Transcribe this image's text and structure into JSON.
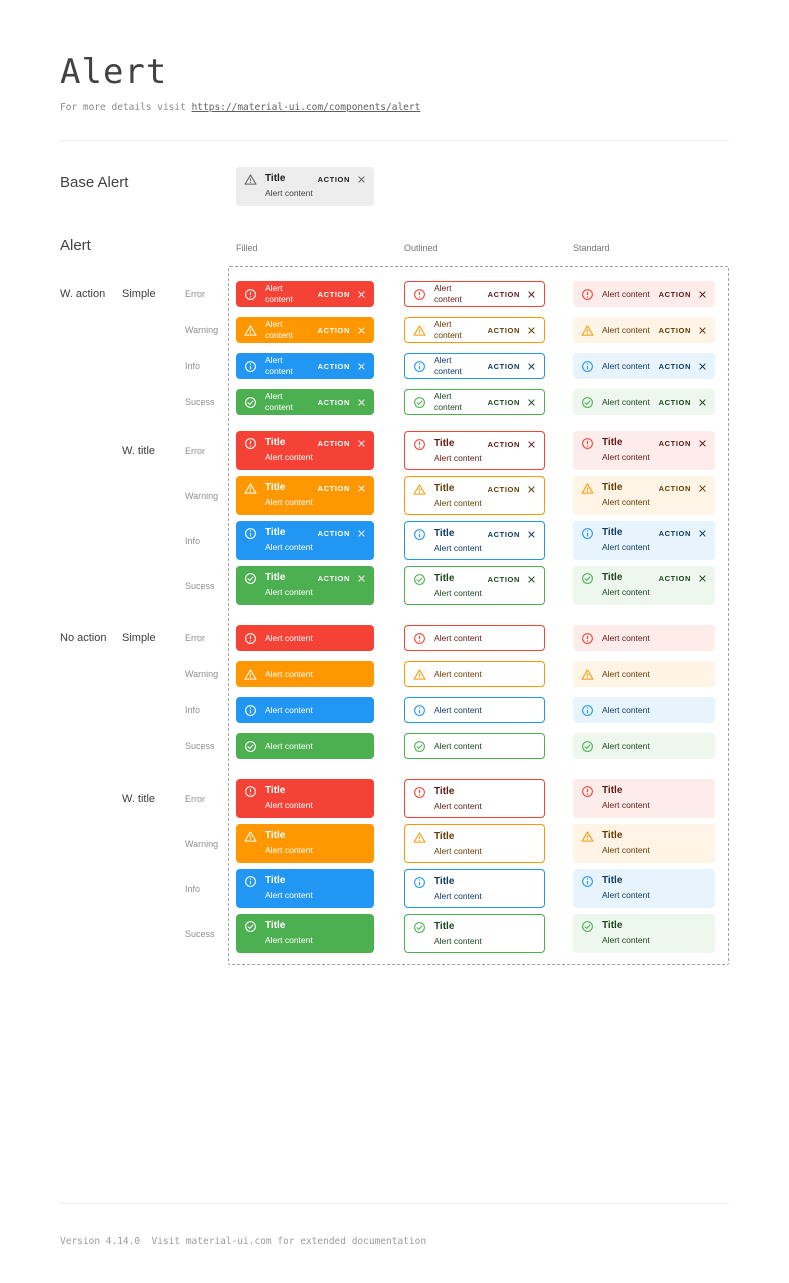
{
  "page": {
    "title": "Alert",
    "subtitle_prefix": "For more details visit ",
    "subtitle_link": "https://material-ui.com/components/alert",
    "footer": "Version 4.14.0  Visit material-ui.com for extended documentation"
  },
  "base_alert": {
    "label": "Base Alert",
    "title": "Title",
    "content": "Alert content",
    "action": "ACTION"
  },
  "grid": {
    "section_label": "Alert",
    "columns": [
      "Filled",
      "Outlined",
      "Standard"
    ],
    "rows_groups": [
      {
        "group": "W. action",
        "subgroups": [
          {
            "label": "Simple",
            "titled": false,
            "with_action": true
          },
          {
            "label": "W. title",
            "titled": true,
            "with_action": true
          }
        ]
      },
      {
        "group": "No action",
        "subgroups": [
          {
            "label": "Simple",
            "titled": false,
            "with_action": false
          },
          {
            "label": "W. title",
            "titled": true,
            "with_action": false
          }
        ]
      }
    ],
    "severities": [
      {
        "key": "error",
        "label": "Error"
      },
      {
        "key": "warning",
        "label": "Warning"
      },
      {
        "key": "info",
        "label": "Info"
      },
      {
        "key": "success",
        "label": "Sucess"
      }
    ],
    "alert_title": "Title",
    "alert_content": "Alert content",
    "action_label": "ACTION"
  },
  "colors": {
    "error": {
      "main": "#f44336",
      "standard_bg": "#fdecea",
      "dark": "#611a15"
    },
    "warning": {
      "main": "#ff9800",
      "standard_bg": "#fff4e5",
      "dark": "#663c00"
    },
    "info": {
      "main": "#2196f3",
      "standard_bg": "#e8f4fd",
      "dark": "#0d3c61"
    },
    "success": {
      "main": "#4caf50",
      "standard_bg": "#edf7ed",
      "dark": "#1e4620"
    },
    "filled_text": "#ffffff",
    "base_bg": "#ededed"
  }
}
